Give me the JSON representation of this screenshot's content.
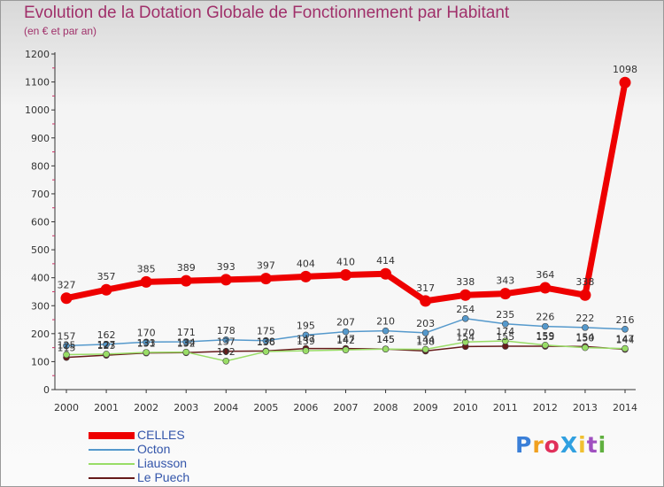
{
  "header": {
    "title": "Evolution de la Dotation Globale de Fonctionnement par Habitant",
    "subtitle": "(en € et par an)"
  },
  "logo": {
    "text": "ProXiti"
  },
  "chart_data": {
    "type": "line",
    "title": "Evolution de la Dotation Globale de Fonctionnement par Habitant",
    "subtitle": "(en € et par an)",
    "xlabel": "",
    "ylabel": "",
    "x": [
      "2000",
      "2001",
      "2002",
      "2003",
      "2004",
      "2005",
      "2006",
      "2007",
      "2008",
      "2009",
      "2010",
      "2011",
      "2012",
      "2013",
      "2014"
    ],
    "yticks": [
      "0",
      "100",
      "200",
      "300",
      "400",
      "500",
      "600",
      "700",
      "800",
      "900",
      "1000",
      "1100",
      "1200"
    ],
    "ylim": [
      0,
      1200
    ],
    "grid": false,
    "legend_position": "bottom-left",
    "series": [
      {
        "name": "CELLES",
        "color": "#ee0000",
        "values": [
          327,
          357,
          385,
          389,
          393,
          397,
          404,
          410,
          414,
          317,
          338,
          343,
          364,
          338,
          1098
        ],
        "labels": [
          "327",
          "357",
          "385",
          "389",
          "393",
          "397",
          "404",
          "410",
          "414",
          "317",
          "338",
          "343",
          "364",
          "338",
          "1098"
        ]
      },
      {
        "name": "Octon",
        "color": "#5599cc",
        "values": [
          157,
          162,
          170,
          171,
          178,
          175,
          195,
          207,
          210,
          203,
          254,
          235,
          226,
          222,
          216
        ],
        "labels": [
          "157",
          "162",
          "170",
          "171",
          "178",
          "175",
          "195",
          "207",
          "210",
          "203",
          "254",
          "235",
          "226",
          "222",
          "216"
        ]
      },
      {
        "name": "Liausson",
        "color": "#99dd66",
        "values": [
          125,
          127,
          133,
          134,
          102,
          136,
          139,
          142,
          145,
          144,
          170,
          174,
          159,
          150,
          147
        ],
        "labels": [
          "125",
          "127",
          "133",
          "134",
          "102",
          "136",
          "139",
          "142",
          "145",
          "144",
          "170",
          "174",
          "159",
          "150",
          "147"
        ]
      },
      {
        "name": "Le Puech",
        "color": "#661a1a",
        "values": [
          115,
          123,
          131,
          132,
          137,
          138,
          147,
          147,
          145,
          138,
          154,
          155,
          155,
          154,
          144
        ],
        "labels": [
          "115",
          "123",
          "131",
          "132",
          "137",
          "138",
          "147",
          "147",
          "145",
          "138",
          "154",
          "155",
          "155",
          "154",
          "144"
        ]
      }
    ]
  }
}
